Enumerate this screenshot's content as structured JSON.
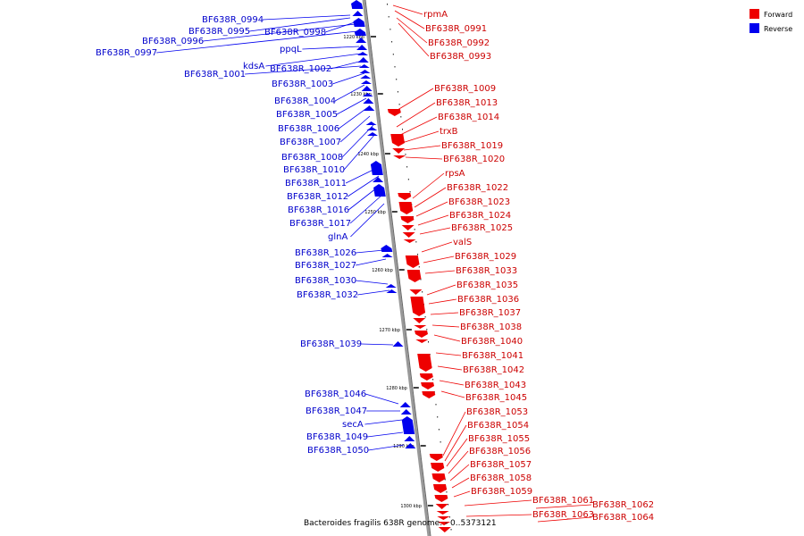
{
  "caption": "Bacteroides fragilis 638R genome. - 0..5373121",
  "colors": {
    "forward": "#ee0000",
    "reverse": "#0000ee",
    "forward_text": "#cc0000",
    "reverse_text": "#0000cc",
    "backbone": "#999999"
  },
  "legend": [
    {
      "key": "forward",
      "label": "Forward"
    },
    {
      "key": "reverse",
      "label": "Reverse"
    }
  ],
  "ticks": [
    "1220 kbp",
    "1230 kbp",
    "1240 kbp",
    "1250 kbp",
    "1260 kbp",
    "1270 kbp",
    "1280 kbp",
    "1290 kbp",
    "1300 kbp"
  ],
  "reverse_genes": [
    "BF638R_0994",
    "BF638R_0995",
    "BF638R_0998",
    "BF638R_0996",
    "BF638R_0997",
    "ppqL",
    "kdsA",
    "BF638R_1002",
    "BF638R_1001",
    "BF638R_1003",
    "BF638R_1004",
    "BF638R_1005",
    "BF638R_1006",
    "BF638R_1007",
    "BF638R_1008",
    "BF638R_1010",
    "BF638R_1011",
    "BF638R_1012",
    "BF638R_1016",
    "BF638R_1017",
    "glnA",
    "BF638R_1026",
    "BF638R_1027",
    "BF638R_1030",
    "BF638R_1032",
    "BF638R_1039",
    "BF638R_1046",
    "BF638R_1047",
    "secA",
    "BF638R_1049",
    "BF638R_1050"
  ],
  "forward_genes": [
    "rpmA",
    "BF638R_0991",
    "BF638R_0992",
    "BF638R_0993",
    "BF638R_1009",
    "BF638R_1013",
    "BF638R_1014",
    "trxB",
    "BF638R_1019",
    "BF638R_1020",
    "rpsA",
    "BF638R_1022",
    "BF638R_1023",
    "BF638R_1024",
    "BF638R_1025",
    "valS",
    "BF638R_1029",
    "BF638R_1033",
    "BF638R_1035",
    "BF638R_1036",
    "BF638R_1037",
    "BF638R_1038",
    "BF638R_1040",
    "BF638R_1041",
    "BF638R_1042",
    "BF638R_1043",
    "BF638R_1045",
    "BF638R_1053",
    "BF638R_1054",
    "BF638R_1055",
    "BF638R_1056",
    "BF638R_1057",
    "BF638R_1058",
    "BF638R_1059",
    "BF638R_1061",
    "BF638R_1063",
    "BF638R_1062",
    "BF638R_1064"
  ]
}
